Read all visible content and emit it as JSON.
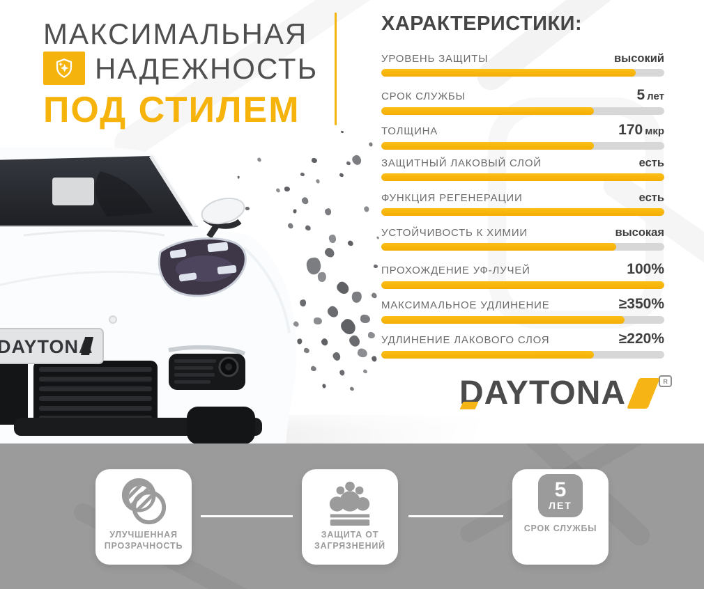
{
  "title": {
    "line1": "МАКСИМАЛЬНАЯ",
    "line2": "НАДЕЖНОСТЬ",
    "line3": "ПОД СТИЛЕМ"
  },
  "specs": {
    "heading": "ХАРАКТЕРИСТИКИ:",
    "rows": [
      {
        "label": "УРОВЕНЬ ЗАЩИТЫ",
        "value": "высокий",
        "unit": "",
        "percent": 90,
        "big": false
      },
      {
        "label": "СРОК СЛУЖБЫ",
        "value": "5",
        "unit": "лет",
        "percent": 75,
        "big": true
      },
      {
        "label": "ТОЛЩИНА",
        "value": "170",
        "unit": "мкр",
        "percent": 75,
        "big": true
      },
      {
        "label": "ЗАЩИТНЫЙ ЛАКОВЫЙ СЛОЙ",
        "value": "есть",
        "unit": "",
        "percent": 100,
        "big": false
      },
      {
        "label": "ФУНКЦИЯ РЕГЕНЕРАЦИИ",
        "value": "есть",
        "unit": "",
        "percent": 100,
        "big": false
      },
      {
        "label": "УСТОЙЧИВОСТЬ К ХИМИИ",
        "value": "высокая",
        "unit": "",
        "percent": 83,
        "big": false
      },
      {
        "label": "ПРОХОЖДЕНИЕ УФ-ЛУЧЕЙ",
        "value": "100%",
        "unit": "",
        "percent": 100,
        "big": true
      },
      {
        "label": "МАКСИМАЛЬНОЕ УДЛИНЕНИЕ",
        "value": "≥350%",
        "unit": "",
        "percent": 86,
        "big": true
      },
      {
        "label": "УДЛИНЕНИЕ ЛАКОВОГО СЛОЯ",
        "value": "≥220%",
        "unit": "",
        "percent": 75,
        "big": true
      }
    ]
  },
  "brand": {
    "logo_text": "DAYTONA",
    "registered_mark": "R",
    "plate_text": "DAYTONA"
  },
  "features": [
    {
      "icon": "transparency-icon",
      "label": "УЛУЧШЕННАЯ ПРОЗРАЧНОСТЬ"
    },
    {
      "icon": "dirt-protection-icon",
      "label": "ЗАЩИТА ОТ ЗАГРЯЗНЕНИЙ"
    },
    {
      "icon": "five-years-badge",
      "badge_number": "5",
      "badge_unit": "ЛЕТ",
      "label": "СРОК СЛУЖБЫ"
    }
  ],
  "colors": {
    "accent": "#F5B40D",
    "title_text": "#4F4F4F",
    "label_text": "#6B6B6B",
    "value_text": "#3F3F3F",
    "bar_track": "#D7D7D7",
    "band_background": "#9B9B9B",
    "card_text": "#9B9B9B",
    "shield_arc_blue": "#78C1E7"
  }
}
